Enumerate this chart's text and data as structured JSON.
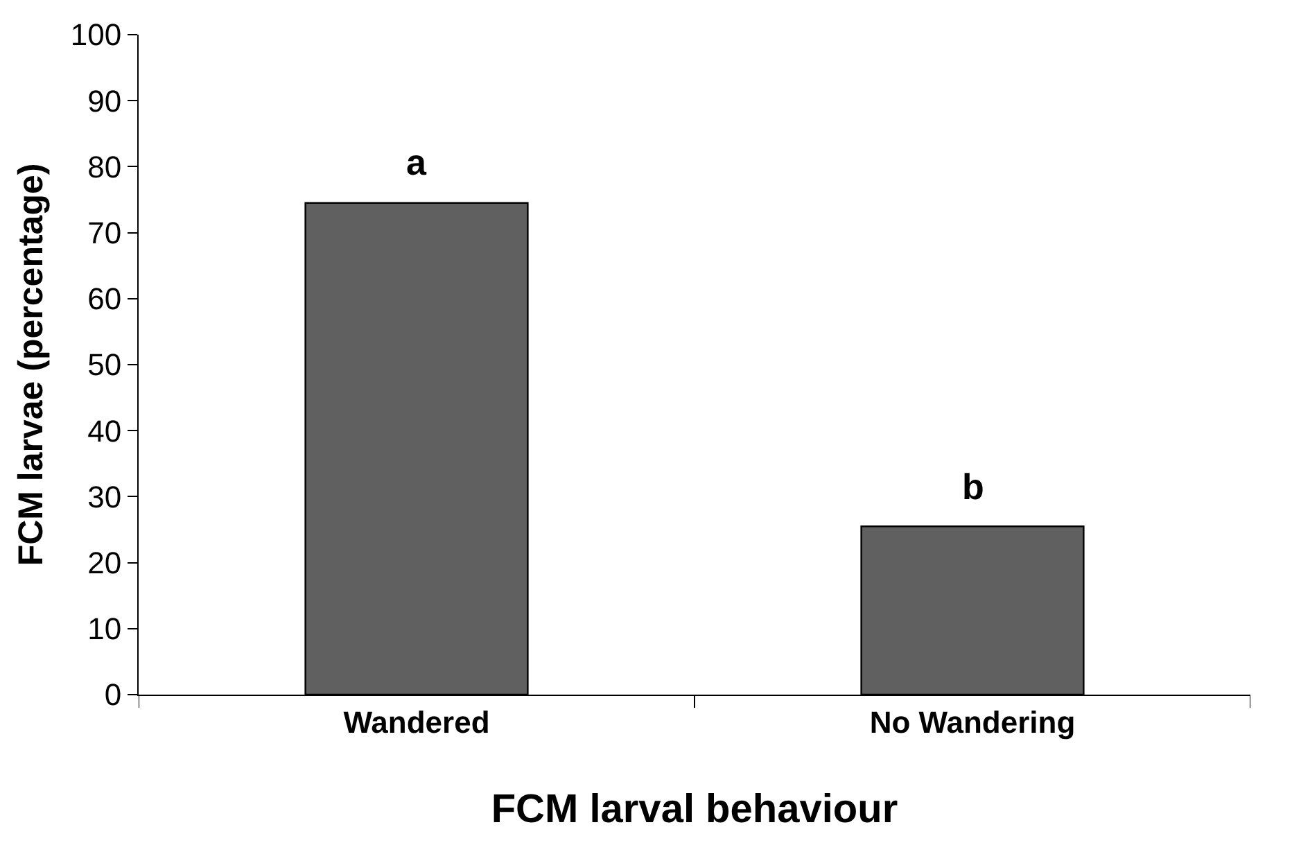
{
  "chart_data": {
    "type": "bar",
    "xlabel": "FCM larval behaviour",
    "ylabel": "FCM larvae (percentage)",
    "categories": [
      "Wandered",
      "No Wandering"
    ],
    "values": [
      74.5,
      25.5
    ],
    "color": "#606060",
    "ylim": [
      0,
      100
    ],
    "yticks": [
      0,
      10,
      20,
      30,
      40,
      50,
      60,
      70,
      80,
      90,
      100
    ],
    "annotations": [
      {
        "text": "a",
        "x": "Wandered",
        "y": 74.5
      },
      {
        "text": "b",
        "x": "No Wandering",
        "y": 25.5
      }
    ]
  }
}
